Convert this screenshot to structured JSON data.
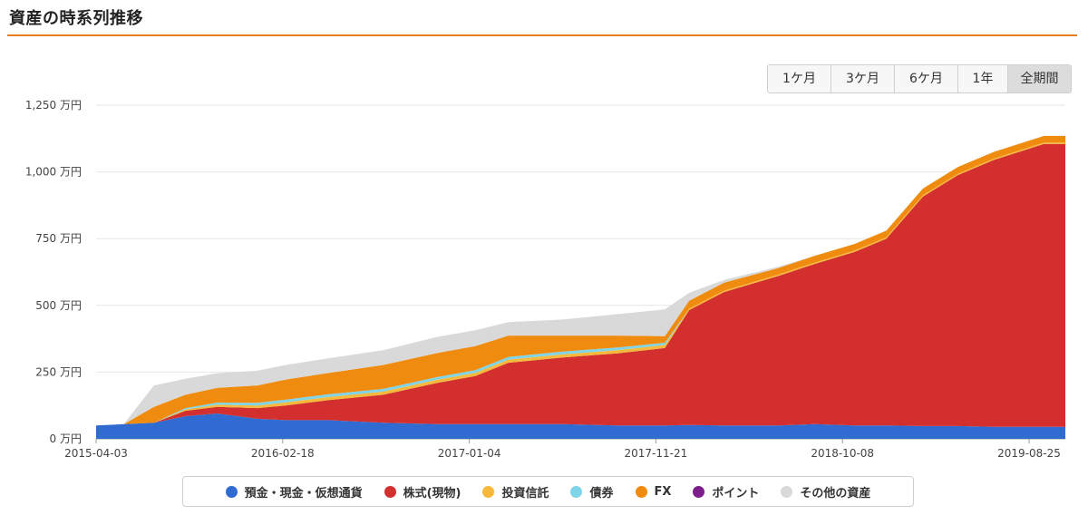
{
  "page": {
    "title": "資産の時系列推移"
  },
  "range_tabs": [
    {
      "label": "1ケ月",
      "active": false
    },
    {
      "label": "3ケ月",
      "active": false
    },
    {
      "label": "6ケ月",
      "active": false
    },
    {
      "label": "1年",
      "active": false
    },
    {
      "label": "全期間",
      "active": true
    }
  ],
  "chart_data": {
    "type": "area",
    "stacked": true,
    "y_unit": "万円",
    "ylim": [
      0,
      1250
    ],
    "y_ticks": [
      0,
      250,
      500,
      750,
      1000,
      1250
    ],
    "y_tick_labels": [
      "0 万円",
      "250 万円",
      "500 万円",
      "750 万円",
      "1,000 万円",
      "1,250 万円"
    ],
    "x_range": [
      "2015-04-03",
      "2019-09-30"
    ],
    "x_tick_labels": [
      "2015-04-03",
      "2016-02-18",
      "2017-01-04",
      "2017-11-21",
      "2018-10-08",
      "2019-08-25"
    ],
    "grid": true,
    "legend_position": "bottom",
    "x": [
      "2015-04-03",
      "2015-05-20",
      "2015-07-10",
      "2015-09-01",
      "2015-10-25",
      "2016-01-01",
      "2016-02-18",
      "2016-05-01",
      "2016-08-01",
      "2016-11-01",
      "2017-01-04",
      "2017-03-01",
      "2017-06-01",
      "2017-09-01",
      "2017-11-21",
      "2018-01-01",
      "2018-03-01",
      "2018-06-01",
      "2018-08-01",
      "2018-10-08",
      "2018-12-01",
      "2019-02-01",
      "2019-04-01",
      "2019-06-01",
      "2019-08-25",
      "2019-09-30"
    ],
    "series": [
      {
        "name": "預金・現金・仮想通貨",
        "color": "#2f6bd1",
        "values": [
          50,
          55,
          60,
          85,
          95,
          75,
          70,
          70,
          60,
          55,
          55,
          55,
          55,
          50,
          50,
          52,
          50,
          50,
          55,
          50,
          50,
          48,
          48,
          45,
          45,
          45
        ]
      },
      {
        "name": "株式(現物)",
        "color": "#d32f2f",
        "values": [
          0,
          0,
          0,
          20,
          25,
          40,
          55,
          75,
          105,
          155,
          180,
          230,
          250,
          270,
          290,
          430,
          500,
          560,
          600,
          650,
          700,
          860,
          940,
          1000,
          1060,
          1060
        ]
      },
      {
        "name": "投資信託",
        "color": "#f6b93b",
        "values": [
          0,
          0,
          0,
          5,
          8,
          10,
          12,
          12,
          12,
          12,
          12,
          12,
          12,
          12,
          12,
          5,
          5,
          5,
          5,
          5,
          5,
          5,
          5,
          5,
          5,
          5
        ]
      },
      {
        "name": "債券",
        "color": "#7fd4e8",
        "values": [
          0,
          0,
          0,
          5,
          8,
          10,
          10,
          10,
          10,
          10,
          10,
          10,
          10,
          10,
          8,
          0,
          0,
          0,
          0,
          0,
          0,
          0,
          0,
          0,
          0,
          0
        ]
      },
      {
        "name": "FX",
        "color": "#ef8c10",
        "values": [
          0,
          0,
          60,
          50,
          55,
          65,
          75,
          80,
          90,
          90,
          90,
          80,
          60,
          45,
          25,
          30,
          30,
          25,
          25,
          25,
          25,
          25,
          25,
          25,
          25,
          25
        ]
      },
      {
        "name": "ポイント",
        "color": "#7b1e8a",
        "values": [
          0,
          0,
          0,
          0,
          0,
          0,
          0,
          0,
          0,
          0,
          0,
          0,
          0,
          0,
          0,
          0,
          0,
          0,
          0,
          0,
          0,
          0,
          0,
          0,
          0,
          0
        ]
      },
      {
        "name": "その他の資産",
        "color": "#d9d9d9",
        "values": [
          0,
          0,
          80,
          60,
          55,
          55,
          55,
          55,
          55,
          60,
          60,
          50,
          60,
          80,
          100,
          30,
          10,
          5,
          0,
          0,
          0,
          0,
          0,
          0,
          0,
          0
        ]
      }
    ]
  }
}
